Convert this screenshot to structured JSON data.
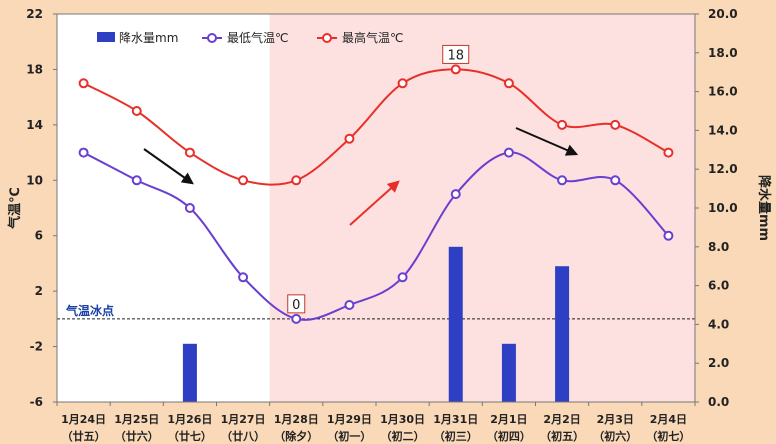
{
  "chart_data": {
    "type": "bar+line",
    "categories": [
      [
        "1月24日",
        "（廿五）"
      ],
      [
        "1月25日",
        "（廿六）"
      ],
      [
        "1月26日",
        "（廿七）"
      ],
      [
        "1月27日",
        "（廿八）"
      ],
      [
        "1月28日",
        "（除夕）"
      ],
      [
        "1月29日",
        "（初一）"
      ],
      [
        "1月30日",
        "（初二）"
      ],
      [
        "1月31日",
        "（初三）"
      ],
      [
        "2月1日",
        "（初四）"
      ],
      [
        "2月2日",
        "（初五）"
      ],
      [
        "2月3日",
        "（初六）"
      ],
      [
        "2月4日",
        "（初七）"
      ]
    ],
    "series": [
      {
        "name": "降水量mm",
        "kind": "bar",
        "axis": "right",
        "color": "#2f3fc4",
        "values": [
          null,
          null,
          3,
          null,
          null,
          null,
          null,
          8,
          3,
          7,
          null,
          null
        ]
      },
      {
        "name": "最低气温℃",
        "kind": "line",
        "axis": "left",
        "color": "#6a3fcf",
        "values": [
          12,
          10,
          8,
          3,
          0,
          1,
          3,
          9,
          12,
          10,
          10,
          6
        ]
      },
      {
        "name": "最高气温℃",
        "kind": "line",
        "axis": "left",
        "color": "#e8302a",
        "values": [
          17,
          15,
          12,
          10,
          10,
          13,
          17,
          18,
          17,
          14,
          14,
          12
        ]
      }
    ],
    "yleft": {
      "label": "气温℃",
      "min": -6,
      "max": 22,
      "ticks": [
        22,
        18,
        14,
        10,
        6,
        2,
        -2,
        -6
      ]
    },
    "yright": {
      "label": "降水量mm",
      "min": 0,
      "max": 20,
      "ticks": [
        "20.0",
        "18.0",
        "16.0",
        "14.0",
        "12.0",
        "10.0",
        "8.0",
        "6.0",
        "4.0",
        "2.0",
        "0.0"
      ]
    },
    "freezing_line": {
      "label": "气温冰点",
      "value": 0
    },
    "annotations": [
      {
        "text": "18",
        "category_index": 7,
        "series": "最高气温℃"
      },
      {
        "text": "0",
        "category_index": 4,
        "series": "最低气温℃"
      }
    ],
    "shaded_from_index": 4,
    "shade_color": "#fde0e0",
    "plot_bg": "#ffffff",
    "legend_position": "top-left"
  }
}
